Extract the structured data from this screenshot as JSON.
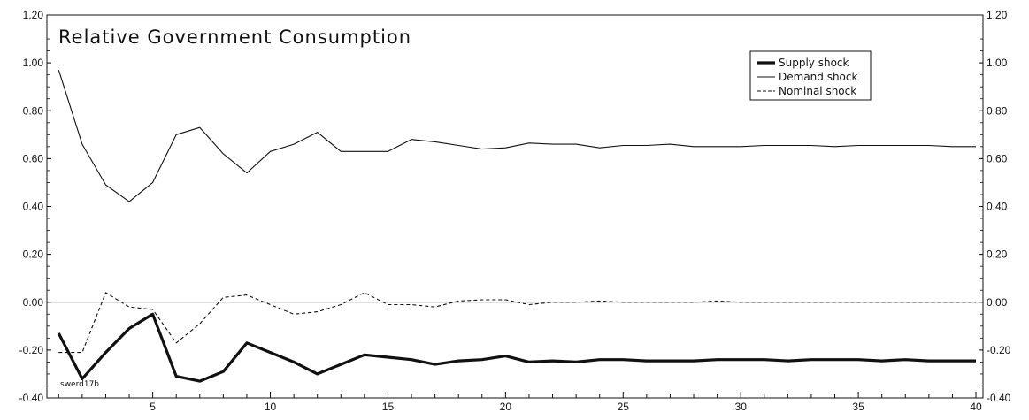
{
  "chart_data": {
    "type": "line",
    "title": "Relative Government Consumption",
    "xlabel": "",
    "ylabel": "",
    "xlim": [
      0.5,
      40.3
    ],
    "ylim": [
      -0.4,
      1.2
    ],
    "x_ticks": [
      5,
      10,
      15,
      20,
      25,
      30,
      35,
      40
    ],
    "y_ticks": [
      -0.4,
      -0.2,
      0.0,
      0.2,
      0.4,
      0.6,
      0.8,
      1.0,
      1.2
    ],
    "y_tick_labels": [
      "-0.40",
      "-0.20",
      "0.00",
      "0.20",
      "0.40",
      "0.60",
      "0.80",
      "1.00",
      "1.20"
    ],
    "secondary_y_axis": true,
    "grid": false,
    "zero_line": true,
    "legend_position": "top-right",
    "annotation": "swerd17b",
    "x": [
      1,
      2,
      3,
      4,
      5,
      6,
      7,
      8,
      9,
      10,
      11,
      12,
      13,
      14,
      15,
      16,
      17,
      18,
      19,
      20,
      21,
      22,
      23,
      24,
      25,
      26,
      27,
      28,
      29,
      30,
      31,
      32,
      33,
      34,
      35,
      36,
      37,
      38,
      39,
      40
    ],
    "series": [
      {
        "name": "Supply shock",
        "style": "thick-solid",
        "values": [
          -0.13,
          -0.32,
          -0.21,
          -0.11,
          -0.05,
          -0.31,
          -0.33,
          -0.29,
          -0.17,
          -0.21,
          -0.25,
          -0.3,
          -0.26,
          -0.22,
          -0.23,
          -0.24,
          -0.26,
          -0.245,
          -0.24,
          -0.225,
          -0.25,
          -0.245,
          -0.25,
          -0.24,
          -0.24,
          -0.245,
          -0.245,
          -0.245,
          -0.24,
          -0.24,
          -0.24,
          -0.245,
          -0.24,
          -0.24,
          -0.24,
          -0.245,
          -0.24,
          -0.245,
          -0.245,
          -0.245
        ]
      },
      {
        "name": "Demand shock",
        "style": "thin-solid",
        "values": [
          0.97,
          0.66,
          0.49,
          0.42,
          0.5,
          0.7,
          0.73,
          0.62,
          0.54,
          0.63,
          0.66,
          0.71,
          0.63,
          0.63,
          0.63,
          0.68,
          0.67,
          0.655,
          0.64,
          0.645,
          0.665,
          0.66,
          0.66,
          0.645,
          0.655,
          0.655,
          0.66,
          0.65,
          0.65,
          0.65,
          0.655,
          0.655,
          0.655,
          0.65,
          0.655,
          0.655,
          0.655,
          0.655,
          0.65,
          0.65
        ]
      },
      {
        "name": "Nominal shock",
        "style": "dashed",
        "values": [
          -0.21,
          -0.21,
          0.04,
          -0.02,
          -0.03,
          -0.17,
          -0.09,
          0.02,
          0.03,
          -0.01,
          -0.05,
          -0.04,
          -0.01,
          0.04,
          -0.01,
          -0.01,
          -0.02,
          0.005,
          0.01,
          0.01,
          -0.01,
          0.0,
          0.0,
          0.005,
          0.0,
          0.0,
          0.0,
          0.0,
          0.005,
          0.0,
          0.0,
          0.0,
          0.0,
          0.0,
          0.0,
          0.0,
          0.0,
          0.0,
          0.0,
          0.0
        ]
      }
    ]
  }
}
